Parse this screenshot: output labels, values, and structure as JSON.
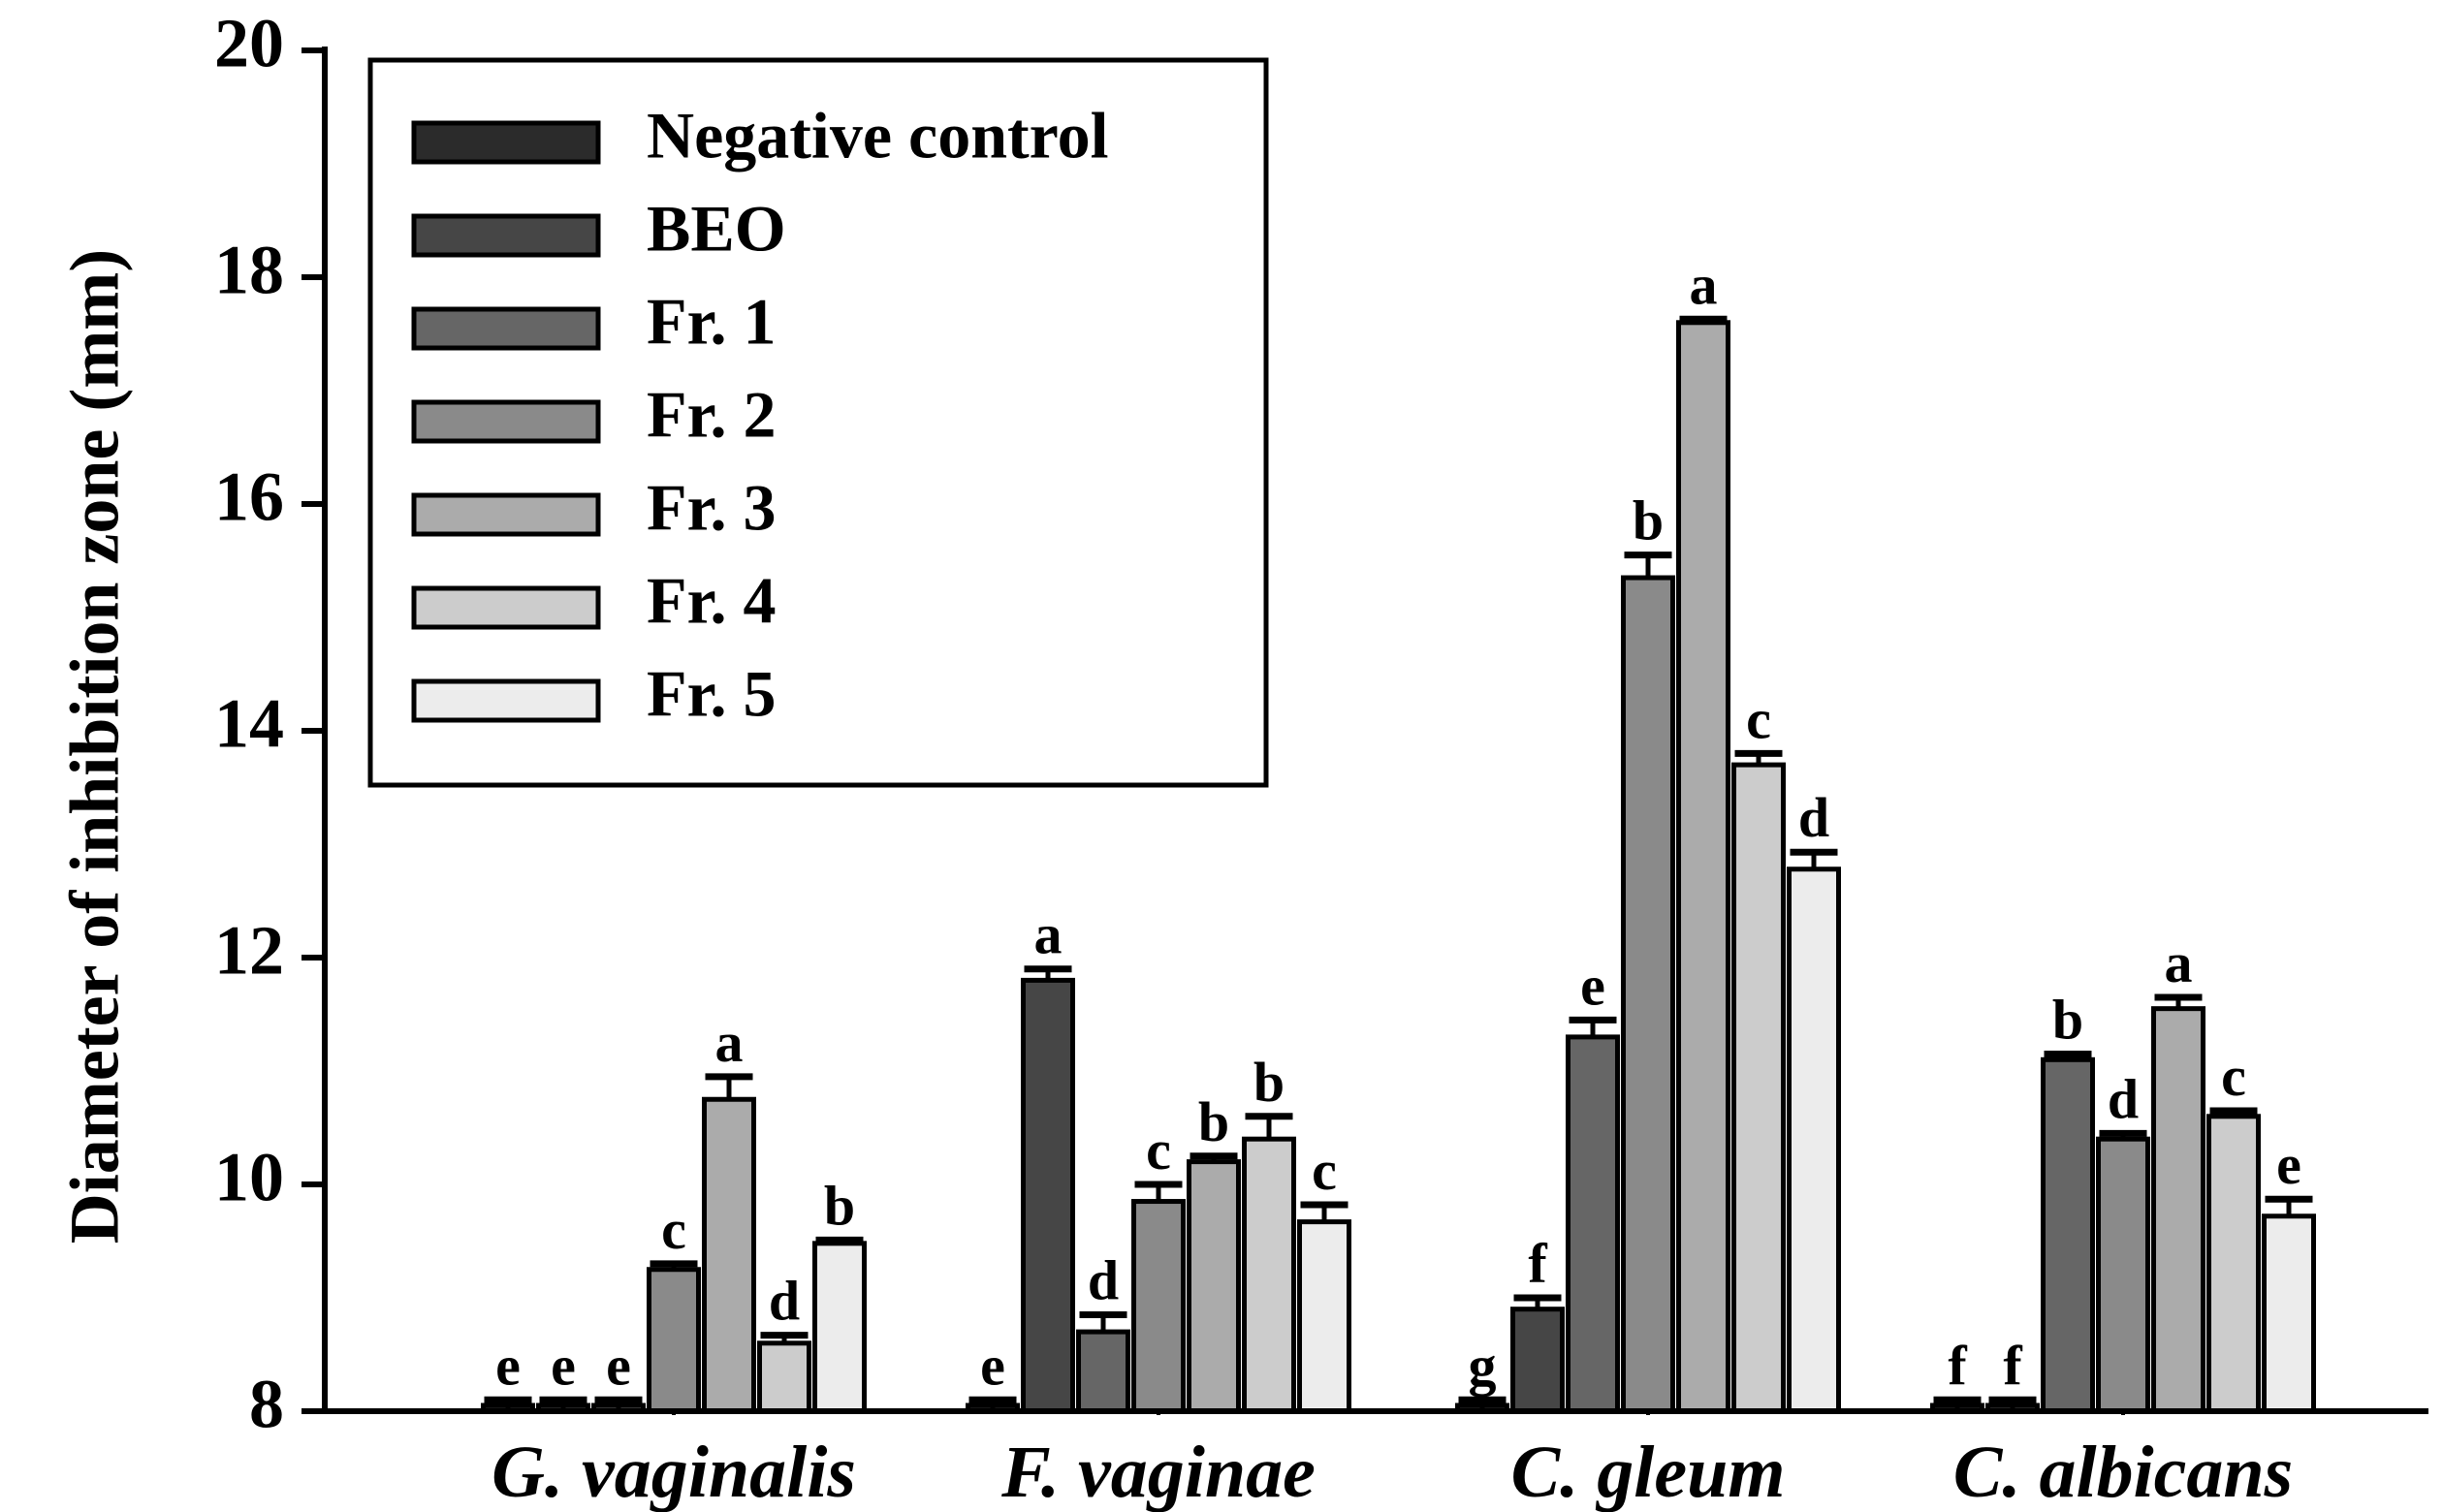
{
  "chart_data": {
    "type": "bar",
    "title": "",
    "xlabel": "",
    "ylabel": "Diameter of inhibition zone (mm)",
    "ylim": [
      8,
      20
    ],
    "yticks": [
      "8",
      "10",
      "12",
      "14",
      "16",
      "18",
      "20"
    ],
    "categories": [
      "G. vaginalis",
      "F. vaginae",
      "C. gleum",
      "C. albicans"
    ],
    "legend_position": "top-left",
    "series": [
      {
        "name": "Negative control",
        "color": "#2b2b2b",
        "values": [
          8.0,
          8.0,
          8.0,
          8.0
        ],
        "errors": [
          0.1,
          0.1,
          0.1,
          0.1
        ],
        "letters": [
          "e",
          "e",
          "g",
          "f"
        ]
      },
      {
        "name": "BEO",
        "color": "#464646",
        "values": [
          8.0,
          11.8,
          8.9,
          8.0
        ],
        "errors": [
          0.1,
          0.1,
          0.1,
          0.1
        ],
        "letters": [
          "e",
          "a",
          "f",
          "f"
        ]
      },
      {
        "name": "Fr. 1",
        "color": "#666666",
        "values": [
          8.0,
          8.7,
          11.3,
          11.1
        ],
        "errors": [
          0.1,
          0.15,
          0.15,
          0.05
        ],
        "letters": [
          "e",
          "d",
          "e",
          "b"
        ]
      },
      {
        "name": "Fr. 2",
        "color": "#8a8a8a",
        "values": [
          9.25,
          9.85,
          15.35,
          10.4
        ],
        "errors": [
          0.05,
          0.15,
          0.2,
          0.05
        ],
        "letters": [
          "c",
          "c",
          "b",
          "d"
        ]
      },
      {
        "name": "Fr. 3",
        "color": "#ababab",
        "values": [
          10.75,
          10.2,
          17.6,
          11.55
        ],
        "errors": [
          0.2,
          0.05,
          0.03,
          0.1
        ],
        "letters": [
          "a",
          "b",
          "a",
          "a"
        ]
      },
      {
        "name": "Fr. 4",
        "color": "#cccccc",
        "values": [
          8.6,
          10.4,
          13.7,
          10.6
        ],
        "errors": [
          0.07,
          0.2,
          0.1,
          0.05
        ],
        "letters": [
          "d",
          "b",
          "c",
          "c"
        ]
      },
      {
        "name": "Fr. 5",
        "color": "#ececec",
        "values": [
          9.48,
          9.67,
          12.78,
          9.72
        ],
        "errors": [
          0.03,
          0.15,
          0.15,
          0.15
        ],
        "letters": [
          "b",
          "c",
          "d",
          "e"
        ]
      }
    ]
  }
}
